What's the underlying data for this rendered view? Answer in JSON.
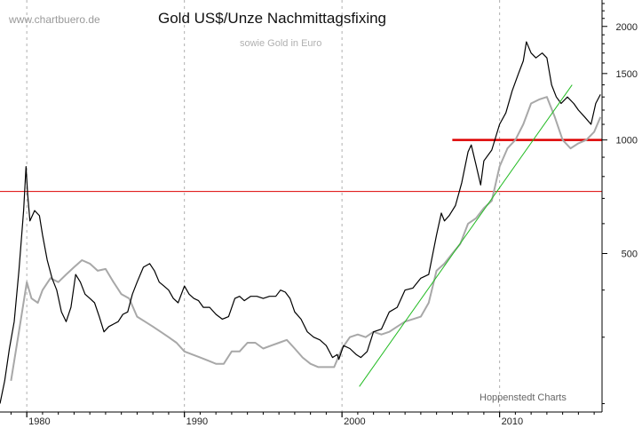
{
  "watermark": "www.chartbuero.de",
  "credit": "Hoppenstedt Charts",
  "colors": {
    "usd_series": "#000000",
    "eur_series": "#a8a8a8",
    "trendline": "#22bb22",
    "resistance": "#dd0000",
    "grid": "#b0b0b0"
  },
  "chart_data": {
    "type": "line",
    "title": "Gold US$/Unze Nachmittagsfixing",
    "subtitle": "sowie Gold in Euro",
    "yscale": "log",
    "ylim": [
      190,
      2350
    ],
    "xlim": [
      1978.3,
      2016.5
    ],
    "x_ticks": [
      1980,
      1990,
      2000,
      2010
    ],
    "y_ticks": [
      500,
      1000,
      1500,
      2000
    ],
    "grid": "vertical dashed at decades",
    "series": [
      {
        "key": "usd",
        "x": [
          1978.3,
          1978.6,
          1978.9,
          1979.2,
          1979.5,
          1979.8,
          1979.95,
          1980.05,
          1980.2,
          1980.5,
          1980.8,
          1981.0,
          1981.3,
          1981.6,
          1981.9,
          1982.2,
          1982.5,
          1982.8,
          1983.1,
          1983.4,
          1983.7,
          1984.0,
          1984.3,
          1984.6,
          1984.9,
          1985.2,
          1985.5,
          1985.8,
          1986.1,
          1986.4,
          1986.7,
          1987.0,
          1987.4,
          1987.8,
          1988.1,
          1988.4,
          1988.7,
          1989.0,
          1989.3,
          1989.6,
          1990.0,
          1990.3,
          1990.6,
          1990.9,
          1991.2,
          1991.6,
          1992.0,
          1992.4,
          1992.8,
          1993.2,
          1993.5,
          1993.8,
          1994.2,
          1994.6,
          1995.0,
          1995.4,
          1995.8,
          1996.1,
          1996.4,
          1996.7,
          1997.0,
          1997.4,
          1997.8,
          1998.2,
          1998.6,
          1999.0,
          1999.4,
          1999.7,
          1999.8,
          2000.1,
          2000.5,
          2000.9,
          2001.2,
          2001.6,
          2002.0,
          2002.5,
          2003.0,
          2003.5,
          2004.0,
          2004.5,
          2005.0,
          2005.5,
          2006.0,
          2006.3,
          2006.5,
          2006.8,
          2007.2,
          2007.6,
          2008.0,
          2008.2,
          2008.5,
          2008.8,
          2009.0,
          2009.5,
          2010.0,
          2010.4,
          2010.8,
          2011.2,
          2011.5,
          2011.7,
          2012.0,
          2012.3,
          2012.7,
          2013.0,
          2013.3,
          2013.6,
          2013.9,
          2014.3,
          2014.7,
          2015.0,
          2015.4,
          2015.8,
          2016.1,
          2016.4
        ],
        "values": [
          200,
          230,
          280,
          330,
          450,
          650,
          850,
          720,
          610,
          650,
          630,
          560,
          480,
          430,
          400,
          350,
          330,
          360,
          440,
          420,
          390,
          380,
          370,
          340,
          310,
          320,
          325,
          330,
          345,
          350,
          390,
          420,
          460,
          470,
          450,
          420,
          410,
          400,
          380,
          370,
          410,
          390,
          380,
          375,
          360,
          360,
          345,
          335,
          340,
          380,
          385,
          375,
          385,
          385,
          380,
          385,
          385,
          400,
          395,
          380,
          350,
          335,
          310,
          300,
          295,
          285,
          265,
          270,
          262,
          285,
          280,
          270,
          265,
          275,
          310,
          315,
          350,
          360,
          400,
          405,
          430,
          440,
          560,
          640,
          610,
          630,
          670,
          770,
          930,
          970,
          860,
          760,
          880,
          940,
          1100,
          1180,
          1350,
          1500,
          1620,
          1820,
          1700,
          1650,
          1700,
          1650,
          1400,
          1300,
          1250,
          1300,
          1250,
          1200,
          1150,
          1100,
          1250,
          1320
        ]
      },
      {
        "key": "eur",
        "x": [
          1979.0,
          1979.5,
          1980.0,
          1980.3,
          1980.7,
          1981.0,
          1981.5,
          1982.0,
          1982.5,
          1983.0,
          1983.5,
          1984.0,
          1984.5,
          1985.0,
          1985.5,
          1986.0,
          1986.5,
          1987.0,
          1987.5,
          1988.0,
          1988.5,
          1989.0,
          1989.5,
          1990.0,
          1990.5,
          1991.0,
          1991.5,
          1992.0,
          1992.5,
          1993.0,
          1993.5,
          1994.0,
          1994.5,
          1995.0,
          1995.5,
          1996.0,
          1996.5,
          1997.0,
          1997.5,
          1998.0,
          1998.5,
          1999.0,
          1999.5,
          2000.0,
          2000.5,
          2001.0,
          2001.5,
          2002.0,
          2002.5,
          2003.0,
          2003.5,
          2004.0,
          2004.5,
          2005.0,
          2005.5,
          2006.0,
          2006.5,
          2007.0,
          2007.5,
          2008.0,
          2008.5,
          2009.0,
          2009.5,
          2010.0,
          2010.5,
          2011.0,
          2011.5,
          2012.0,
          2012.5,
          2013.0,
          2013.5,
          2014.0,
          2014.5,
          2015.0,
          2015.5,
          2016.0,
          2016.4
        ],
        "values": [
          230,
          310,
          420,
          380,
          370,
          400,
          430,
          420,
          440,
          460,
          480,
          470,
          450,
          455,
          420,
          390,
          380,
          340,
          330,
          320,
          310,
          300,
          290,
          275,
          270,
          265,
          260,
          255,
          255,
          275,
          275,
          290,
          290,
          280,
          285,
          290,
          295,
          280,
          265,
          255,
          250,
          250,
          250,
          280,
          300,
          305,
          300,
          310,
          305,
          310,
          320,
          330,
          335,
          340,
          370,
          450,
          470,
          500,
          530,
          600,
          620,
          660,
          690,
          850,
          950,
          1000,
          1100,
          1250,
          1280,
          1300,
          1150,
          1000,
          950,
          980,
          1000,
          1050,
          1150
        ]
      }
    ],
    "annotations": [
      {
        "type": "hline",
        "y": 730,
        "x_from": 1978.3,
        "x_to": 2016.5,
        "color": "#dd0000"
      },
      {
        "type": "hline",
        "y": 1000,
        "x_from": 2007.0,
        "x_to": 2016.5,
        "color": "#dd0000"
      },
      {
        "type": "trendline",
        "x": [
          2001.1,
          2014.6
        ],
        "y": [
          222,
          1400
        ],
        "color": "#22bb22"
      }
    ]
  }
}
